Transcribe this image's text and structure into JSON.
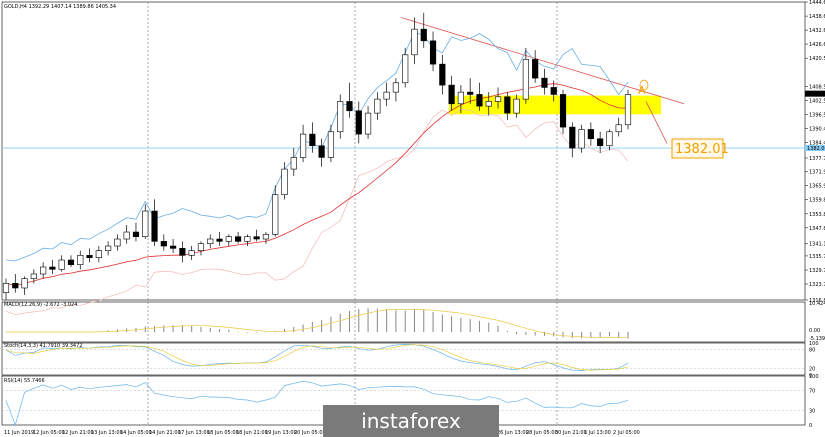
{
  "main_title": "GOLD,H4 1392.29 1407.14 1389.86 1405.34",
  "macd_title": "MACD(12,26,9) -2.672 -3.024",
  "stoch_title": "Stoch(14,3,3) 41.7910 39.3472",
  "rsi_title": "RSI(14) 55.7466",
  "watermark_text": "instaforex",
  "annotation": {
    "level_label": "1382.01",
    "marker": "A"
  },
  "price_axis": {
    "ticks": [
      "1444.65",
      "1438.60",
      "1432.60",
      "1426.60",
      "1420.55",
      "1408.50",
      "1402.50",
      "1396.50",
      "1390.45",
      "1384.40",
      "1377.75",
      "1371.90",
      "1365.90",
      "1359.85",
      "1353.80",
      "1347.80",
      "1341.15",
      "1335.75",
      "1329.70",
      "1323.70",
      "1316.85"
    ],
    "current_price": "1405.34",
    "level_price": "1382.01"
  },
  "macd_axis": {
    "ticks": [
      "10.424",
      "0.00",
      "-5.139"
    ]
  },
  "stoch_axis": {
    "ticks": [
      "100",
      "80",
      "20",
      "0"
    ]
  },
  "rsi_axis": {
    "ticks": [
      "100",
      "70",
      "30",
      "0"
    ]
  },
  "time_axis": [
    "11 Jun 2019",
    "12 Jun 05:00",
    "12 Jun 21:00",
    "13 Jun 13:00",
    "14 Jun 05:00",
    "14 Jun 21:00",
    "17 Jun 13:00",
    "18 Jun 05:00",
    "18 Jun 21:00",
    "19 Jun 13:00",
    "20 Jun 05:00",
    "20 Jun 21:",
    "",
    "",
    "",
    "",
    "",
    "26 Jun 13:00",
    "28 Jun 05:00",
    "30 Jun 21:00",
    "1 Jul 13:00",
    "2 Jul 05:00"
  ],
  "colors": {
    "bull_candle": "#ffffff",
    "bear_candle": "#000000",
    "bollinger": "#6aaee8",
    "ma_red": "#e03030",
    "ma_pink": "#f4c0c0",
    "trendline": "#e05050",
    "highlight": "#ffff00",
    "level_line": "#87cefa",
    "stoch_main": "#6ab4ec",
    "stoch_signal": "#e8d040",
    "rsi_line": "#6ab4ec",
    "macd_signal": "#e8c840",
    "watermark_bg": "#7a7a7a",
    "watermark_text": "#ffffff"
  },
  "chart_data": {
    "type": "candlestick",
    "title": "GOLD,H4 1392.29 1407.14 1389.86 1405.34",
    "ylim": [
      1316.85,
      1444.65
    ],
    "candles": [
      [
        1320,
        1326,
        1317,
        1324
      ],
      [
        1324,
        1328,
        1320,
        1322
      ],
      [
        1322,
        1327,
        1319,
        1326
      ],
      [
        1326,
        1330,
        1324,
        1328
      ],
      [
        1328,
        1333,
        1326,
        1331
      ],
      [
        1331,
        1334,
        1328,
        1330
      ],
      [
        1330,
        1336,
        1329,
        1334
      ],
      [
        1334,
        1336,
        1331,
        1332
      ],
      [
        1332,
        1338,
        1330,
        1336
      ],
      [
        1336,
        1339,
        1333,
        1335
      ],
      [
        1335,
        1340,
        1333,
        1338
      ],
      [
        1338,
        1342,
        1336,
        1340
      ],
      [
        1340,
        1345,
        1338,
        1343
      ],
      [
        1343,
        1349,
        1341,
        1346
      ],
      [
        1346,
        1350,
        1342,
        1344
      ],
      [
        1344,
        1358,
        1343,
        1355
      ],
      [
        1355,
        1360,
        1340,
        1342
      ],
      [
        1342,
        1345,
        1338,
        1340
      ],
      [
        1340,
        1343,
        1337,
        1339
      ],
      [
        1339,
        1342,
        1333,
        1336
      ],
      [
        1336,
        1340,
        1334,
        1338
      ],
      [
        1338,
        1342,
        1336,
        1341
      ],
      [
        1341,
        1345,
        1339,
        1343
      ],
      [
        1343,
        1346,
        1340,
        1342
      ],
      [
        1342,
        1345,
        1340,
        1344
      ],
      [
        1344,
        1346,
        1341,
        1342
      ],
      [
        1342,
        1345,
        1340,
        1344
      ],
      [
        1344,
        1347,
        1342,
        1343
      ],
      [
        1343,
        1346,
        1341,
        1345
      ],
      [
        1345,
        1366,
        1344,
        1362
      ],
      [
        1362,
        1376,
        1360,
        1373
      ],
      [
        1373,
        1382,
        1370,
        1378
      ],
      [
        1378,
        1392,
        1376,
        1388
      ],
      [
        1388,
        1393,
        1380,
        1383
      ],
      [
        1383,
        1386,
        1374,
        1378
      ],
      [
        1378,
        1392,
        1376,
        1389
      ],
      [
        1389,
        1405,
        1386,
        1402
      ],
      [
        1402,
        1410,
        1395,
        1398
      ],
      [
        1398,
        1402,
        1384,
        1388
      ],
      [
        1388,
        1400,
        1386,
        1397
      ],
      [
        1397,
        1406,
        1394,
        1403
      ],
      [
        1403,
        1410,
        1400,
        1406
      ],
      [
        1406,
        1412,
        1402,
        1410
      ],
      [
        1410,
        1425,
        1408,
        1422
      ],
      [
        1422,
        1438,
        1418,
        1433
      ],
      [
        1433,
        1440,
        1425,
        1428
      ],
      [
        1428,
        1432,
        1415,
        1418
      ],
      [
        1418,
        1422,
        1405,
        1409
      ],
      [
        1409,
        1413,
        1398,
        1401
      ],
      [
        1401,
        1409,
        1397,
        1406
      ],
      [
        1406,
        1412,
        1401,
        1405
      ],
      [
        1405,
        1410,
        1398,
        1400
      ],
      [
        1400,
        1406,
        1396,
        1402
      ],
      [
        1402,
        1408,
        1399,
        1404
      ],
      [
        1404,
        1406,
        1394,
        1397
      ],
      [
        1397,
        1405,
        1395,
        1403
      ],
      [
        1403,
        1425,
        1401,
        1420
      ],
      [
        1420,
        1424,
        1410,
        1412
      ],
      [
        1412,
        1416,
        1405,
        1408
      ],
      [
        1408,
        1411,
        1402,
        1405
      ],
      [
        1405,
        1407,
        1388,
        1391
      ],
      [
        1391,
        1393,
        1378,
        1382
      ],
      [
        1382,
        1392,
        1380,
        1390
      ],
      [
        1390,
        1393,
        1383,
        1386
      ],
      [
        1386,
        1389,
        1380,
        1383
      ],
      [
        1383,
        1390,
        1381,
        1389
      ],
      [
        1389,
        1395,
        1387,
        1392
      ],
      [
        1392,
        1407,
        1390,
        1405
      ]
    ],
    "level": 1382.01,
    "current": 1405.34
  }
}
